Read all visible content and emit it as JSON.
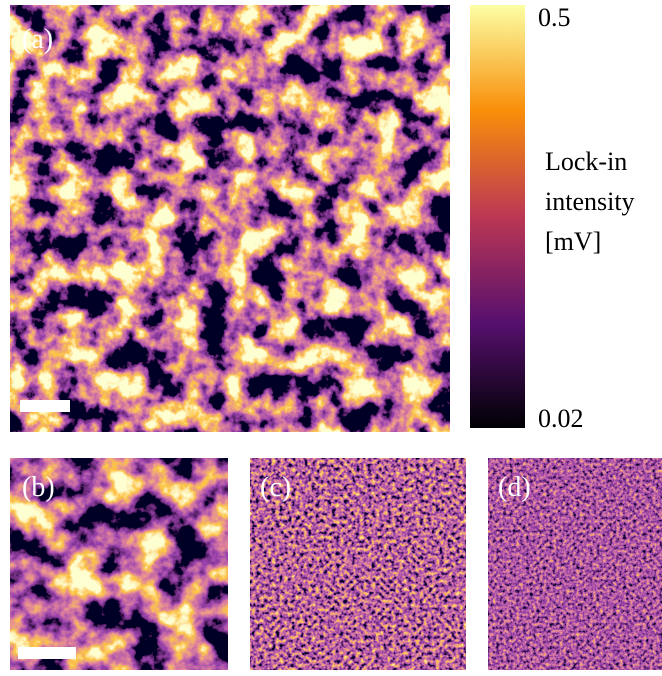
{
  "panels": [
    {
      "label": "(a)"
    },
    {
      "label": "(b)"
    },
    {
      "label": "(c)"
    },
    {
      "label": "(d)"
    }
  ],
  "colorbar": {
    "max": 0.5,
    "min": 0.02,
    "label": [
      "Lock-in",
      "intensity",
      "[mV]"
    ]
  }
}
